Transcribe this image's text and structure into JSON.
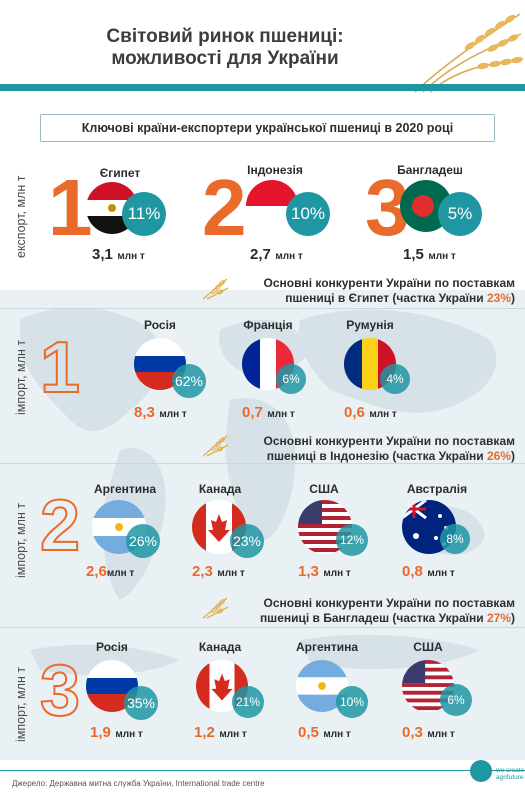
{
  "header": {
    "title_line1": "Світовий ринок пшениці:",
    "title_line2": "можливості для України",
    "subtitle": "Ключові країни-експортери української пшениці в 2020 році"
  },
  "labels": {
    "export_axis": "експорт, млн т",
    "import_axis": "імпорт, млн т",
    "unit": "млн т"
  },
  "top_destinations": [
    {
      "rank": "1",
      "country": "Єгипет",
      "share": "11%",
      "amount": "3,1",
      "flag": "egypt-flag"
    },
    {
      "rank": "2",
      "country": "Індонезія",
      "share": "10%",
      "amount": "2,7",
      "flag": "indonesia-flag"
    },
    {
      "rank": "3",
      "country": "Бангладеш",
      "share": "5%",
      "amount": "1,5",
      "flag": "bangladesh-flag"
    }
  ],
  "competitors": [
    {
      "rank": "1",
      "heading_line1": "Основні конкуренти України по поставкам",
      "heading_line2_pre": "пшениці в Єгипет (частка України ",
      "heading_share": "23%",
      "heading_line2_post": ")",
      "items": [
        {
          "country": "Росія",
          "share": "62%",
          "amount": "8,3",
          "flag": "russia-flag"
        },
        {
          "country": "Франція",
          "share": "6%",
          "amount": "0,7",
          "flag": "france-flag"
        },
        {
          "country": "Румунія",
          "share": "4%",
          "amount": "0,6",
          "flag": "romania-flag"
        }
      ]
    },
    {
      "rank": "2",
      "heading_line1": "Основні конкуренти України по поставкам",
      "heading_line2_pre": "пшениці в Індонезію (частка України ",
      "heading_share": "26%",
      "heading_line2_post": ")",
      "items": [
        {
          "country": "Аргентина",
          "share": "26%",
          "amount": "2,6",
          "flag": "argentina-flag"
        },
        {
          "country": "Канада",
          "share": "23%",
          "amount": "2,3",
          "flag": "canada-flag"
        },
        {
          "country": "США",
          "share": "12%",
          "amount": "1,3",
          "flag": "usa-flag"
        },
        {
          "country": "Австралія",
          "share": "8%",
          "amount": "0,8",
          "flag": "australia-flag"
        }
      ]
    },
    {
      "rank": "3",
      "heading_line1": "Основні конкуренти України по поставкам",
      "heading_line2_pre": "пшениці в Бангладеш (частка України ",
      "heading_share": "27%",
      "heading_line2_post": ")",
      "items": [
        {
          "country": "Росія",
          "share": "35%",
          "amount": "1,9",
          "flag": "russia-flag"
        },
        {
          "country": "Канада",
          "share": "21%",
          "amount": "1,2",
          "flag": "canada-flag"
        },
        {
          "country": "Аргентина",
          "share": "10%",
          "amount": "0,5",
          "flag": "argentina-flag"
        },
        {
          "country": "США",
          "share": "6%",
          "amount": "0,3",
          "flag": "usa-flag"
        }
      ]
    }
  ],
  "footer": {
    "source": "Джерело: Державна митна служба України, International trade centre",
    "logo_line1": "we create",
    "logo_line2": "agrifuture"
  },
  "colors": {
    "accent_teal": "#1f97a3",
    "accent_orange": "#ea6a2b"
  }
}
